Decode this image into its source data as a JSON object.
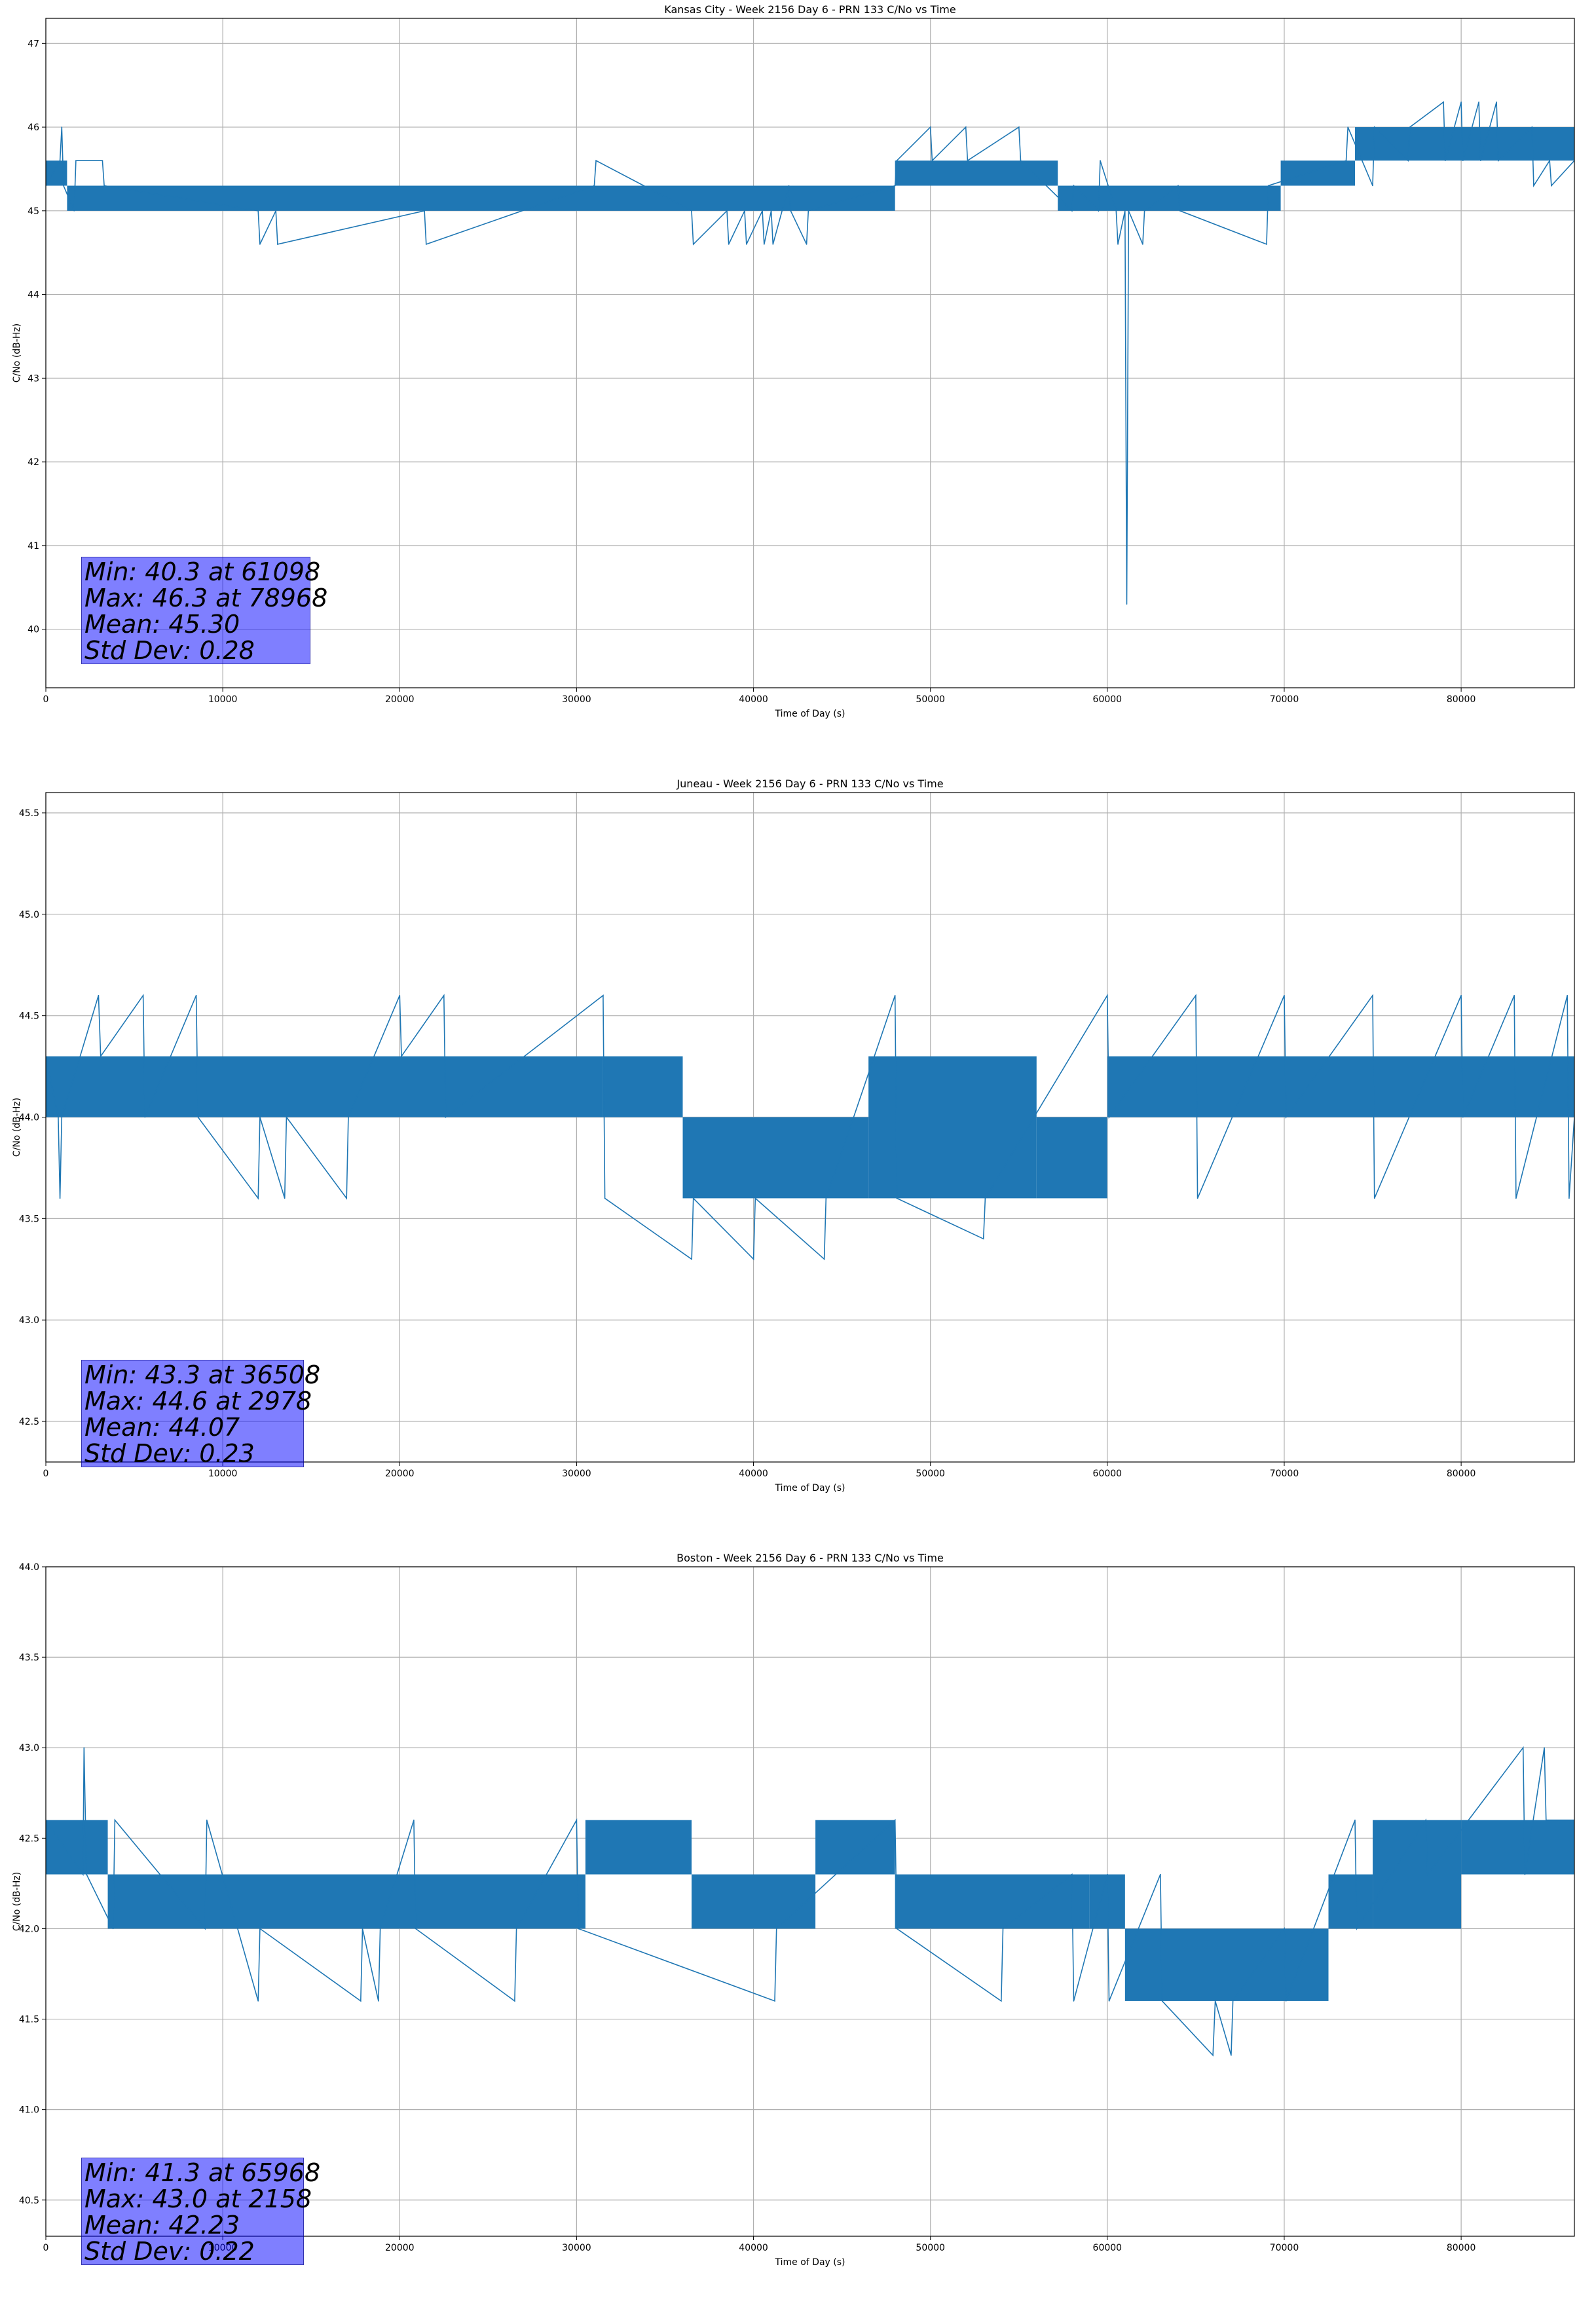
{
  "chart_data": [
    {
      "type": "line",
      "title": "Kansas City - Week 2156 Day 6 - PRN 133 C/No vs Time",
      "xlabel": "Time of Day (s)",
      "ylabel": "C/No (dB-Hz)",
      "xlim": [
        0,
        86400
      ],
      "ylim": [
        39.3,
        47.3
      ],
      "xticks": [
        0,
        10000,
        20000,
        30000,
        40000,
        50000,
        60000,
        70000,
        80000
      ],
      "yticks": [
        40,
        41,
        42,
        43,
        44,
        45,
        46,
        47
      ],
      "ytick_labels": [
        "40",
        "41",
        "42",
        "43",
        "44",
        "45",
        "46",
        "47"
      ],
      "grid": true,
      "color": "#1f77b4",
      "band_segments": [
        {
          "x": [
            0,
            1200
          ],
          "y": [
            45.3,
            45.6
          ]
        },
        {
          "x": [
            1200,
            48000
          ],
          "y": [
            45.0,
            45.3
          ]
        },
        {
          "x": [
            48000,
            57200
          ],
          "y": [
            45.3,
            45.6
          ]
        },
        {
          "x": [
            57200,
            69800
          ],
          "y": [
            45.0,
            45.3
          ]
        },
        {
          "x": [
            69800,
            74000
          ],
          "y": [
            45.3,
            45.6
          ]
        },
        {
          "x": [
            74000,
            86400
          ],
          "y": [
            45.6,
            46.0
          ]
        }
      ],
      "series": [
        {
          "x": [
            0,
            800,
            900,
            1000,
            1600,
            1700,
            3200,
            3300,
            12000,
            12100,
            13000,
            13100,
            21400,
            21500,
            31000,
            31100,
            36500,
            36600,
            38500,
            38600,
            39500,
            39600,
            40500,
            40600,
            41000,
            41100,
            42000,
            42100,
            43000,
            43100,
            48000,
            48100,
            50000,
            50100,
            52000,
            52100,
            55000,
            55100,
            58000,
            58100,
            59500,
            59600,
            60500,
            60600,
            61000,
            61098,
            61200,
            62000,
            62100,
            64000,
            64100,
            69000,
            69100,
            73500,
            73600,
            75000,
            75100,
            77000,
            77100,
            79000,
            79100,
            80000,
            80100,
            81000,
            81100,
            82000,
            82100,
            84000,
            84100,
            85000,
            85100,
            86400
          ],
          "y": [
            45.3,
            45.6,
            46.0,
            45.3,
            45.0,
            45.6,
            45.6,
            45.3,
            45.0,
            44.6,
            45.0,
            44.6,
            45.0,
            44.6,
            45.3,
            45.6,
            45.0,
            44.6,
            45.0,
            44.6,
            45.0,
            44.6,
            45.0,
            44.6,
            45.0,
            44.6,
            45.3,
            45.0,
            44.6,
            45.0,
            45.3,
            45.6,
            46.0,
            45.6,
            46.0,
            45.6,
            46.0,
            45.6,
            45.0,
            45.3,
            45.0,
            45.6,
            45.0,
            44.6,
            45.0,
            40.3,
            45.0,
            44.6,
            45.0,
            45.3,
            45.0,
            44.6,
            45.3,
            45.6,
            46.0,
            45.3,
            46.0,
            45.6,
            46.0,
            46.3,
            45.6,
            46.3,
            45.6,
            46.3,
            45.6,
            46.3,
            45.6,
            46.0,
            45.3,
            45.6,
            45.3,
            45.6
          ]
        }
      ],
      "stats": [
        "Min: 40.3 at 61098",
        "Max: 46.3 at 78968",
        "Mean: 45.30",
        "Std Dev: 0.28"
      ]
    },
    {
      "type": "line",
      "title": "Juneau - Week 2156 Day 6 - PRN 133 C/No vs Time",
      "xlabel": "Time of Day (s)",
      "ylabel": "C/No (dB-Hz)",
      "xlim": [
        0,
        86400
      ],
      "ylim": [
        42.3,
        45.6
      ],
      "xticks": [
        0,
        10000,
        20000,
        30000,
        40000,
        50000,
        60000,
        70000,
        80000
      ],
      "yticks": [
        42.5,
        43.0,
        43.5,
        44.0,
        44.5,
        45.0,
        45.5
      ],
      "ytick_labels": [
        "42.5",
        "43.0",
        "43.5",
        "44.0",
        "44.5",
        "45.0",
        "45.5"
      ],
      "grid": true,
      "color": "#1f77b4",
      "band_segments": [
        {
          "x": [
            0,
            31500
          ],
          "y": [
            44.0,
            44.3
          ]
        },
        {
          "x": [
            31500,
            36000
          ],
          "y": [
            44.0,
            44.3
          ]
        },
        {
          "x": [
            36000,
            46500
          ],
          "y": [
            43.6,
            44.0
          ]
        },
        {
          "x": [
            46500,
            56000
          ],
          "y": [
            43.6,
            44.3
          ]
        },
        {
          "x": [
            56000,
            60000
          ],
          "y": [
            43.6,
            44.0
          ]
        },
        {
          "x": [
            60000,
            86400
          ],
          "y": [
            44.0,
            44.3
          ]
        }
      ],
      "series": [
        {
          "x": [
            0,
            700,
            800,
            900,
            2978,
            3100,
            5500,
            5600,
            8500,
            8600,
            12000,
            12100,
            13500,
            13600,
            17000,
            17100,
            20000,
            20100,
            22500,
            22600,
            31500,
            31600,
            36500,
            36508,
            36600,
            40000,
            40100,
            44000,
            44100,
            48000,
            48100,
            53000,
            53100,
            60000,
            60100,
            65000,
            65100,
            70000,
            70100,
            75000,
            75100,
            80000,
            80100,
            83000,
            83100,
            86000,
            86100,
            86400
          ],
          "y": [
            44.3,
            44.0,
            43.6,
            44.0,
            44.6,
            44.3,
            44.6,
            44.0,
            44.6,
            44.0,
            43.6,
            44.0,
            43.6,
            44.0,
            43.6,
            44.0,
            44.6,
            44.3,
            44.6,
            44.0,
            44.6,
            43.6,
            43.3,
            43.3,
            43.6,
            43.3,
            43.6,
            43.3,
            43.6,
            44.6,
            43.6,
            43.4,
            43.6,
            44.6,
            44.0,
            44.6,
            43.6,
            44.6,
            44.0,
            44.6,
            43.6,
            44.6,
            44.0,
            44.6,
            43.6,
            44.6,
            43.6,
            44.0
          ]
        }
      ],
      "stats": [
        "Min: 43.3 at 36508",
        "Max: 44.6 at 2978",
        "Mean: 44.07",
        "Std Dev: 0.23"
      ]
    },
    {
      "type": "line",
      "title": "Boston - Week 2156 Day 6 - PRN 133 C/No vs Time",
      "xlabel": "Time of Day (s)",
      "ylabel": "C/No (dB-Hz)",
      "xlim": [
        0,
        86400
      ],
      "ylim": [
        40.3,
        44.0
      ],
      "xticks": [
        0,
        10000,
        20000,
        30000,
        40000,
        50000,
        60000,
        70000,
        80000
      ],
      "yticks": [
        40.5,
        41.0,
        41.5,
        42.0,
        42.5,
        43.0,
        43.5,
        44.0
      ],
      "ytick_labels": [
        "40.5",
        "41.0",
        "41.5",
        "42.0",
        "42.5",
        "43.0",
        "43.5",
        "44.0"
      ],
      "grid": true,
      "color": "#1f77b4",
      "band_segments": [
        {
          "x": [
            0,
            3500
          ],
          "y": [
            42.3,
            42.6
          ]
        },
        {
          "x": [
            3500,
            30500
          ],
          "y": [
            42.0,
            42.3
          ]
        },
        {
          "x": [
            30500,
            36500
          ],
          "y": [
            42.3,
            42.6
          ]
        },
        {
          "x": [
            36500,
            43500
          ],
          "y": [
            42.0,
            42.3
          ]
        },
        {
          "x": [
            43500,
            48000
          ],
          "y": [
            42.3,
            42.6
          ]
        },
        {
          "x": [
            48000,
            59000
          ],
          "y": [
            42.0,
            42.3
          ]
        },
        {
          "x": [
            59000,
            61000
          ],
          "y": [
            42.0,
            42.3
          ]
        },
        {
          "x": [
            61000,
            72500
          ],
          "y": [
            41.6,
            42.0
          ]
        },
        {
          "x": [
            72500,
            75000
          ],
          "y": [
            42.0,
            42.3
          ]
        },
        {
          "x": [
            75000,
            80000
          ],
          "y": [
            42.0,
            42.6
          ]
        },
        {
          "x": [
            80000,
            86400
          ],
          "y": [
            42.3,
            42.6
          ]
        }
      ],
      "series": [
        {
          "x": [
            0,
            2100,
            2158,
            2300,
            3800,
            3900,
            9000,
            9100,
            12000,
            12100,
            17800,
            17900,
            18800,
            18900,
            20800,
            20900,
            26500,
            26600,
            30000,
            30100,
            41200,
            41300,
            48000,
            48100,
            54000,
            54100,
            58000,
            58100,
            60000,
            60100,
            63000,
            63100,
            65968,
            66100,
            67000,
            67100,
            70000,
            70100,
            74000,
            74100,
            78000,
            78100,
            83500,
            83600,
            84700,
            84800,
            86400
          ],
          "y": [
            42.6,
            42.3,
            43.0,
            42.3,
            42.0,
            42.6,
            42.0,
            42.6,
            41.6,
            42.0,
            41.6,
            42.0,
            41.6,
            42.0,
            42.6,
            42.0,
            41.6,
            42.0,
            42.6,
            42.0,
            41.6,
            42.0,
            42.6,
            42.0,
            41.6,
            42.0,
            42.3,
            41.6,
            42.3,
            41.6,
            42.3,
            41.6,
            41.3,
            41.6,
            41.3,
            41.6,
            42.0,
            41.6,
            42.6,
            42.0,
            42.6,
            42.3,
            43.0,
            42.3,
            43.0,
            42.6,
            42.6
          ]
        }
      ],
      "stats": [
        "Min: 41.3 at 65968",
        "Max: 43.0 at 2158",
        "Mean: 42.23",
        "Std Dev: 0.22"
      ]
    }
  ]
}
